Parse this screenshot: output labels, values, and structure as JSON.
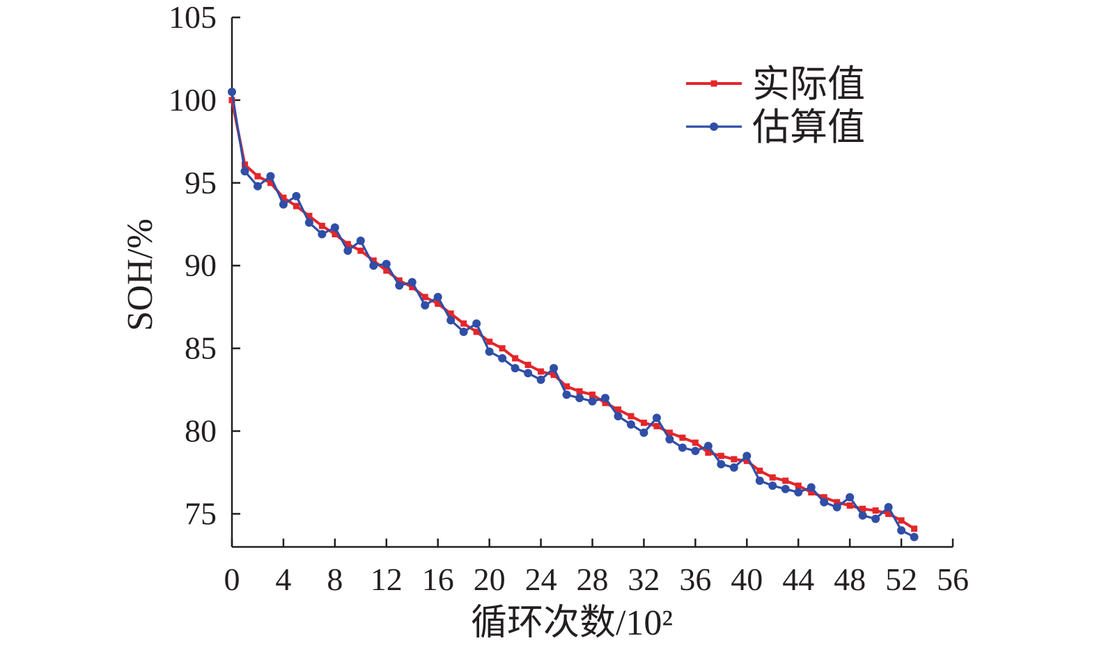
{
  "chart_data": {
    "type": "line",
    "xlabel": "循环次数/10²",
    "ylabel": "SOH/%",
    "xlim": [
      0,
      56
    ],
    "ylim": [
      73,
      105
    ],
    "x_ticks": [
      0,
      4,
      8,
      12,
      16,
      20,
      24,
      28,
      32,
      36,
      40,
      44,
      48,
      52,
      56
    ],
    "y_ticks": [
      75,
      80,
      85,
      90,
      95,
      100,
      105
    ],
    "grid": false,
    "legend": {
      "position": "top-right"
    },
    "x": [
      0,
      1,
      2,
      3,
      4,
      5,
      6,
      7,
      8,
      9,
      10,
      11,
      12,
      13,
      14,
      15,
      16,
      17,
      18,
      19,
      20,
      21,
      22,
      23,
      24,
      25,
      26,
      27,
      28,
      29,
      30,
      31,
      32,
      33,
      34,
      35,
      36,
      37,
      38,
      39,
      40,
      41,
      42,
      43,
      44,
      45,
      46,
      47,
      48,
      49,
      50,
      51,
      52,
      53
    ],
    "series": [
      {
        "name": "实际值",
        "color": "#e3262b",
        "marker": "square",
        "values": [
          100.0,
          96.1,
          95.4,
          95.0,
          94.1,
          93.6,
          93.0,
          92.4,
          91.9,
          91.3,
          90.9,
          90.3,
          89.7,
          89.1,
          88.7,
          88.1,
          87.7,
          87.1,
          86.5,
          86.0,
          85.4,
          85.0,
          84.4,
          84.0,
          83.6,
          83.4,
          82.7,
          82.4,
          82.2,
          81.7,
          81.3,
          80.9,
          80.5,
          80.3,
          79.9,
          79.6,
          79.3,
          78.7,
          78.5,
          78.3,
          78.2,
          77.6,
          77.2,
          77.0,
          76.7,
          76.3,
          76.0,
          75.7,
          75.5,
          75.3,
          75.2,
          75.0,
          74.6,
          74.1
        ]
      },
      {
        "name": "估算值",
        "color": "#2f4ea6",
        "marker": "circle",
        "values": [
          100.5,
          95.7,
          94.8,
          95.4,
          93.7,
          94.2,
          92.6,
          91.9,
          92.3,
          90.9,
          91.5,
          90.0,
          90.1,
          88.8,
          89.0,
          87.6,
          88.1,
          86.7,
          86.0,
          86.5,
          84.8,
          84.4,
          83.8,
          83.5,
          83.1,
          83.8,
          82.2,
          82.0,
          81.8,
          82.0,
          80.9,
          80.4,
          79.9,
          80.8,
          79.5,
          79.0,
          78.8,
          79.1,
          78.0,
          77.8,
          78.5,
          77.0,
          76.7,
          76.5,
          76.3,
          76.6,
          75.7,
          75.4,
          76.0,
          74.9,
          74.7,
          75.4,
          74.0,
          73.6
        ]
      }
    ]
  }
}
